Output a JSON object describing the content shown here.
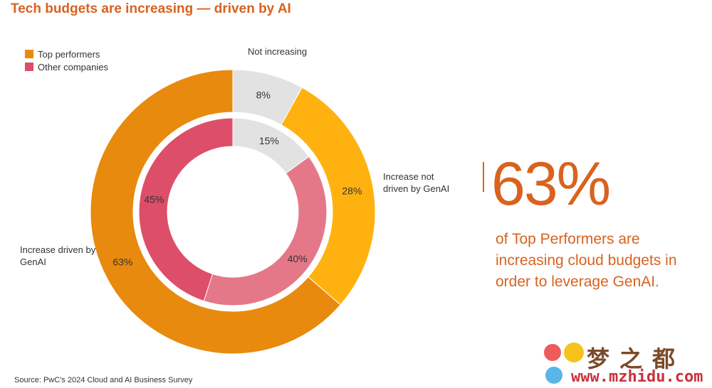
{
  "title": "Tech budgets are increasing — driven by AI",
  "legend": [
    {
      "label": "Top performers",
      "color": "#e88a0e"
    },
    {
      "label": "Other companies",
      "color": "#dd4e68"
    }
  ],
  "chart_data": {
    "type": "pie",
    "variant": "nested-donut",
    "title": "Tech budgets are increasing — driven by AI",
    "categories": [
      "Not increasing",
      "Increase not driven by GenAI",
      "Increase driven by GenAI"
    ],
    "series": [
      {
        "name": "Top performers",
        "ring": "outer",
        "values": [
          8,
          28,
          63
        ],
        "labels": [
          "8%",
          "28%",
          "63%"
        ],
        "colors": [
          "#e2e2e2",
          "#ffb20f",
          "#e88a0e"
        ]
      },
      {
        "name": "Other companies",
        "ring": "inner",
        "values": [
          15,
          40,
          45
        ],
        "labels": [
          "15%",
          "40%",
          "45%"
        ],
        "colors": [
          "#e2e2e2",
          "#e47889",
          "#dd4e68"
        ]
      }
    ],
    "legend_position": "top-left"
  },
  "callout": {
    "value": "63%",
    "text": "of Top Performers are increasing cloud budgets in order to leverage GenAI."
  },
  "source": "Source: PwC's 2024 Cloud and AI Business Survey",
  "watermark": {
    "chinese": "梦之都",
    "url": "www.mzhidu.com"
  }
}
